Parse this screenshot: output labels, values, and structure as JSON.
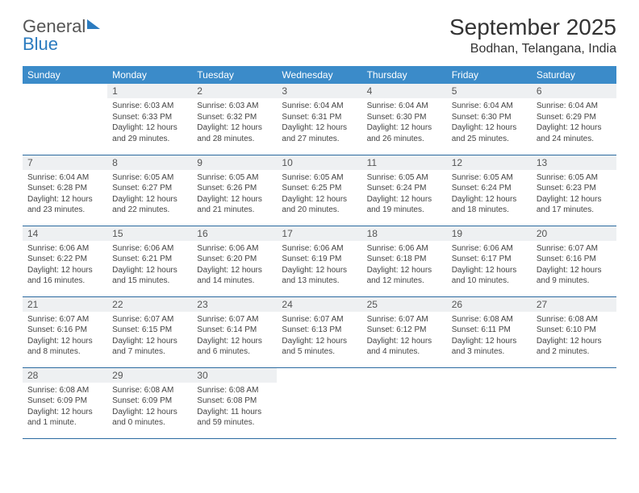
{
  "brand": {
    "word1": "General",
    "word2": "Blue"
  },
  "title": "September 2025",
  "location": "Bodhan, Telangana, India",
  "colors": {
    "header_bg": "#3b8bc9",
    "header_text": "#ffffff",
    "daynum_bg": "#eef0f2",
    "rule": "#2b6aa0",
    "brand_blue": "#2b7bbf"
  },
  "typography": {
    "title_fontsize": 28,
    "location_fontsize": 16,
    "header_fontsize": 12,
    "daynum_fontsize": 12,
    "body_fontsize": 10
  },
  "dow": [
    "Sunday",
    "Monday",
    "Tuesday",
    "Wednesday",
    "Thursday",
    "Friday",
    "Saturday"
  ],
  "weeks": [
    [
      {
        "n": "",
        "lines": []
      },
      {
        "n": "1",
        "lines": [
          "Sunrise: 6:03 AM",
          "Sunset: 6:33 PM",
          "Daylight: 12 hours and 29 minutes."
        ]
      },
      {
        "n": "2",
        "lines": [
          "Sunrise: 6:03 AM",
          "Sunset: 6:32 PM",
          "Daylight: 12 hours and 28 minutes."
        ]
      },
      {
        "n": "3",
        "lines": [
          "Sunrise: 6:04 AM",
          "Sunset: 6:31 PM",
          "Daylight: 12 hours and 27 minutes."
        ]
      },
      {
        "n": "4",
        "lines": [
          "Sunrise: 6:04 AM",
          "Sunset: 6:30 PM",
          "Daylight: 12 hours and 26 minutes."
        ]
      },
      {
        "n": "5",
        "lines": [
          "Sunrise: 6:04 AM",
          "Sunset: 6:30 PM",
          "Daylight: 12 hours and 25 minutes."
        ]
      },
      {
        "n": "6",
        "lines": [
          "Sunrise: 6:04 AM",
          "Sunset: 6:29 PM",
          "Daylight: 12 hours and 24 minutes."
        ]
      }
    ],
    [
      {
        "n": "7",
        "lines": [
          "Sunrise: 6:04 AM",
          "Sunset: 6:28 PM",
          "Daylight: 12 hours and 23 minutes."
        ]
      },
      {
        "n": "8",
        "lines": [
          "Sunrise: 6:05 AM",
          "Sunset: 6:27 PM",
          "Daylight: 12 hours and 22 minutes."
        ]
      },
      {
        "n": "9",
        "lines": [
          "Sunrise: 6:05 AM",
          "Sunset: 6:26 PM",
          "Daylight: 12 hours and 21 minutes."
        ]
      },
      {
        "n": "10",
        "lines": [
          "Sunrise: 6:05 AM",
          "Sunset: 6:25 PM",
          "Daylight: 12 hours and 20 minutes."
        ]
      },
      {
        "n": "11",
        "lines": [
          "Sunrise: 6:05 AM",
          "Sunset: 6:24 PM",
          "Daylight: 12 hours and 19 minutes."
        ]
      },
      {
        "n": "12",
        "lines": [
          "Sunrise: 6:05 AM",
          "Sunset: 6:24 PM",
          "Daylight: 12 hours and 18 minutes."
        ]
      },
      {
        "n": "13",
        "lines": [
          "Sunrise: 6:05 AM",
          "Sunset: 6:23 PM",
          "Daylight: 12 hours and 17 minutes."
        ]
      }
    ],
    [
      {
        "n": "14",
        "lines": [
          "Sunrise: 6:06 AM",
          "Sunset: 6:22 PM",
          "Daylight: 12 hours and 16 minutes."
        ]
      },
      {
        "n": "15",
        "lines": [
          "Sunrise: 6:06 AM",
          "Sunset: 6:21 PM",
          "Daylight: 12 hours and 15 minutes."
        ]
      },
      {
        "n": "16",
        "lines": [
          "Sunrise: 6:06 AM",
          "Sunset: 6:20 PM",
          "Daylight: 12 hours and 14 minutes."
        ]
      },
      {
        "n": "17",
        "lines": [
          "Sunrise: 6:06 AM",
          "Sunset: 6:19 PM",
          "Daylight: 12 hours and 13 minutes."
        ]
      },
      {
        "n": "18",
        "lines": [
          "Sunrise: 6:06 AM",
          "Sunset: 6:18 PM",
          "Daylight: 12 hours and 12 minutes."
        ]
      },
      {
        "n": "19",
        "lines": [
          "Sunrise: 6:06 AM",
          "Sunset: 6:17 PM",
          "Daylight: 12 hours and 10 minutes."
        ]
      },
      {
        "n": "20",
        "lines": [
          "Sunrise: 6:07 AM",
          "Sunset: 6:16 PM",
          "Daylight: 12 hours and 9 minutes."
        ]
      }
    ],
    [
      {
        "n": "21",
        "lines": [
          "Sunrise: 6:07 AM",
          "Sunset: 6:16 PM",
          "Daylight: 12 hours and 8 minutes."
        ]
      },
      {
        "n": "22",
        "lines": [
          "Sunrise: 6:07 AM",
          "Sunset: 6:15 PM",
          "Daylight: 12 hours and 7 minutes."
        ]
      },
      {
        "n": "23",
        "lines": [
          "Sunrise: 6:07 AM",
          "Sunset: 6:14 PM",
          "Daylight: 12 hours and 6 minutes."
        ]
      },
      {
        "n": "24",
        "lines": [
          "Sunrise: 6:07 AM",
          "Sunset: 6:13 PM",
          "Daylight: 12 hours and 5 minutes."
        ]
      },
      {
        "n": "25",
        "lines": [
          "Sunrise: 6:07 AM",
          "Sunset: 6:12 PM",
          "Daylight: 12 hours and 4 minutes."
        ]
      },
      {
        "n": "26",
        "lines": [
          "Sunrise: 6:08 AM",
          "Sunset: 6:11 PM",
          "Daylight: 12 hours and 3 minutes."
        ]
      },
      {
        "n": "27",
        "lines": [
          "Sunrise: 6:08 AM",
          "Sunset: 6:10 PM",
          "Daylight: 12 hours and 2 minutes."
        ]
      }
    ],
    [
      {
        "n": "28",
        "lines": [
          "Sunrise: 6:08 AM",
          "Sunset: 6:09 PM",
          "Daylight: 12 hours and 1 minute."
        ]
      },
      {
        "n": "29",
        "lines": [
          "Sunrise: 6:08 AM",
          "Sunset: 6:09 PM",
          "Daylight: 12 hours and 0 minutes."
        ]
      },
      {
        "n": "30",
        "lines": [
          "Sunrise: 6:08 AM",
          "Sunset: 6:08 PM",
          "Daylight: 11 hours and 59 minutes."
        ]
      },
      {
        "n": "",
        "lines": []
      },
      {
        "n": "",
        "lines": []
      },
      {
        "n": "",
        "lines": []
      },
      {
        "n": "",
        "lines": []
      }
    ]
  ]
}
